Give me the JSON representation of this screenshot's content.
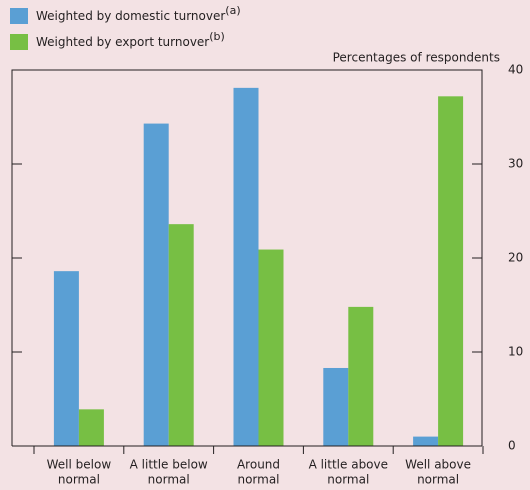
{
  "chart_data": {
    "type": "bar",
    "y_axis_label": "Percentages of respondents",
    "categories": [
      [
        "Well below",
        "normal"
      ],
      [
        "A little below",
        "normal"
      ],
      [
        "Around",
        "normal"
      ],
      [
        "A little above",
        "normal"
      ],
      [
        "Well above",
        "normal"
      ]
    ],
    "series": [
      {
        "name": "Weighted by domestic turnover",
        "note": "(a)",
        "color": "#5a9fd4",
        "values": [
          18.6,
          34.3,
          38.1,
          8.3,
          1.0
        ]
      },
      {
        "name": "Weighted by export turnover",
        "note": "(b)",
        "color": "#77bf44",
        "values": [
          3.9,
          23.6,
          20.9,
          14.8,
          37.2
        ]
      }
    ],
    "ylim": [
      0,
      40
    ],
    "yticks": [
      0,
      10,
      20,
      30,
      40
    ]
  }
}
